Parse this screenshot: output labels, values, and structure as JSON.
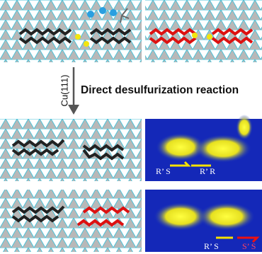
{
  "reaction": {
    "substrate": "Cu(111)",
    "title": "Direct desulfurization reaction"
  },
  "stm_panels": [
    {
      "tags": [
        "R’ S",
        "R’ R"
      ]
    },
    {
      "tags": [
        "R’ S",
        "S’ S"
      ]
    }
  ]
}
